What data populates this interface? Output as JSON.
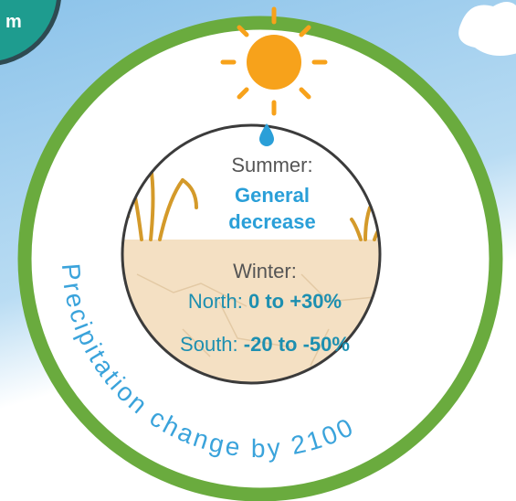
{
  "badge_text": "m",
  "summer": {
    "label": "Summer:",
    "value_lines": [
      "General",
      "decrease"
    ]
  },
  "winter": {
    "label": "Winter:",
    "north": {
      "label": "North:",
      "value": "0 to +30%"
    },
    "south": {
      "label": "South:",
      "value": "-20 to -50%"
    }
  },
  "arc_text": "Precipitation change by 2100"
}
